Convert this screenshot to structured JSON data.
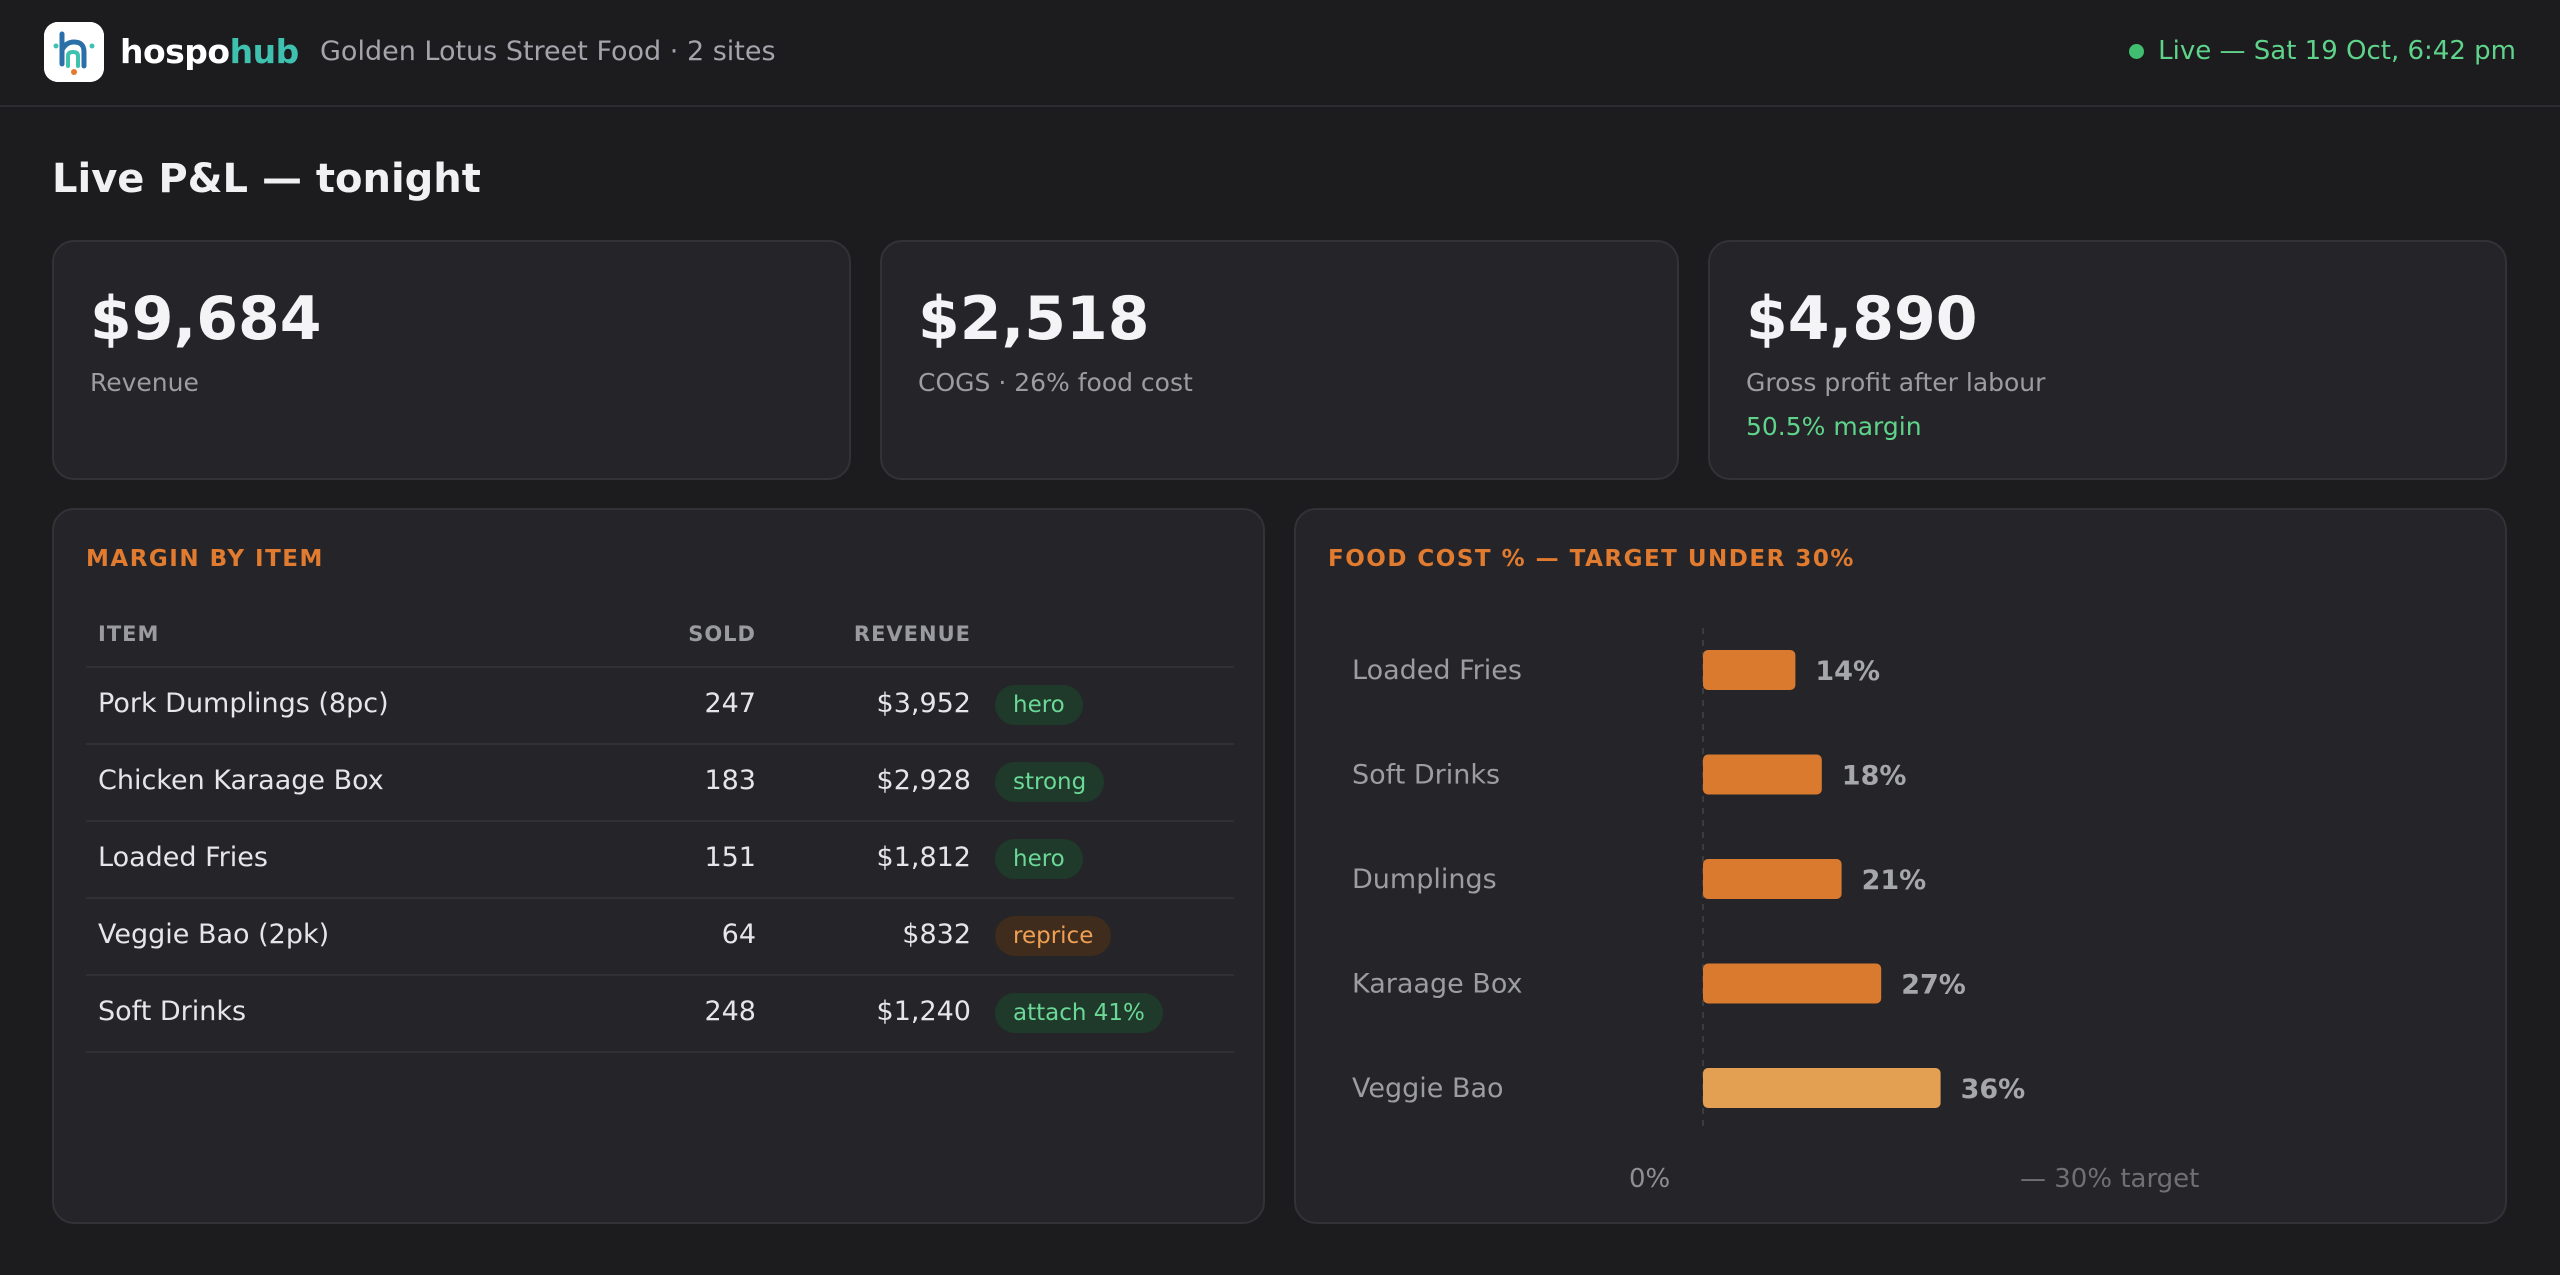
{
  "header": {
    "brand_part1": "hospo",
    "brand_part2": "hub",
    "venue": "Golden Lotus Street Food · 2 sites",
    "live_status": "Live — Sat 19 Oct, 6:42 pm",
    "colors": {
      "accent": "#3fc1b0",
      "live": "#5fd38a"
    }
  },
  "page": {
    "title": "Live P&L — tonight"
  },
  "kpis": [
    {
      "value": "$9,684",
      "label": "Revenue"
    },
    {
      "value": "$2,518",
      "label": "COGS · 26% food cost"
    },
    {
      "value": "$4,890",
      "label": "Gross profit after labour",
      "extra": "50.5% margin"
    }
  ],
  "margin_table": {
    "title": "MARGIN BY ITEM",
    "columns": [
      "ITEM",
      "SOLD",
      "REVENUE"
    ],
    "rows": [
      {
        "item": "Pork Dumplings (8pc)",
        "sold": "247",
        "revenue": "$3,952",
        "tag": "hero",
        "tag_color": "green"
      },
      {
        "item": "Chicken Karaage Box",
        "sold": "183",
        "revenue": "$2,928",
        "tag": "strong",
        "tag_color": "green"
      },
      {
        "item": "Loaded Fries",
        "sold": "151",
        "revenue": "$1,812",
        "tag": "hero",
        "tag_color": "green"
      },
      {
        "item": "Veggie Bao (2pk)",
        "sold": "64",
        "revenue": "$832",
        "tag": "reprice",
        "tag_color": "orange"
      },
      {
        "item": "Soft Drinks",
        "sold": "248",
        "revenue": "$1,240",
        "tag": "attach 41%",
        "tag_color": "green"
      }
    ]
  },
  "food_cost": {
    "title": "FOOD COST % — TARGET UNDER 30%",
    "axis_start_label": "0%",
    "target_label": "— 30% target",
    "colors": {
      "bar": "#d97a2e",
      "over_target": "#e3a052"
    }
  },
  "chart_data": {
    "type": "bar",
    "orientation": "horizontal",
    "categories": [
      "Loaded Fries",
      "Soft Drinks",
      "Dumplings",
      "Karaage Box",
      "Veggie Bao"
    ],
    "values": [
      14,
      18,
      21,
      27,
      36
    ],
    "value_labels": [
      "14%",
      "18%",
      "21%",
      "27%",
      "36%"
    ],
    "title": "FOOD COST % — TARGET UNDER 30%",
    "target": 30,
    "xlim": [
      0,
      45
    ]
  }
}
